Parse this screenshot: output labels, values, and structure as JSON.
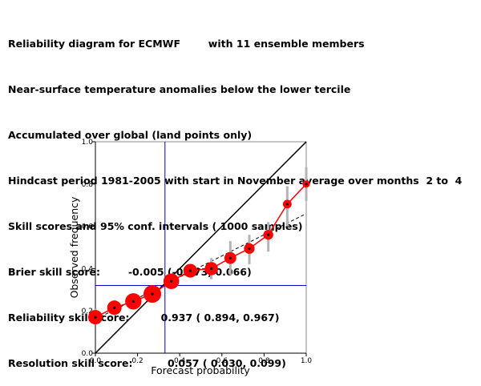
{
  "header": {
    "lines": [
      "Reliability diagram for ECMWF        with 11 ensemble members",
      "Near-surface temperature anomalies below the lower tercile",
      "Accumulated over global (land points only)",
      "Hindcast period 1981-2005 with start in November average over months  2 to  4",
      "Skill scores and 95% conf. intervals ( 1000 samples)",
      "Brier skill score:        -0.005 (-0.073, 0.066)",
      "Reliability skill score:         0.937 ( 0.894, 0.967)",
      "Resolution skill score:          0.057 ( 0.030, 0.099)"
    ]
  },
  "chart_data": {
    "type": "scatter",
    "xlabel": "Forecast probability",
    "ylabel": "Observed frequency",
    "xlim": [
      0,
      1
    ],
    "ylim": [
      0,
      1
    ],
    "x_ticks": [
      "0.0",
      "0.2",
      "0.4",
      "0.6",
      "0.8",
      "1.0"
    ],
    "y_ticks": [
      "0.0",
      "0.2",
      "0.4",
      "0.6",
      "0.8",
      "1.0"
    ],
    "climatology": 0.32,
    "climatology_x": 0.33,
    "fit_line": {
      "x": [
        0.0,
        1.0
      ],
      "y": [
        0.16,
        0.66
      ]
    },
    "points": [
      {
        "x": 0.0,
        "y": 0.17,
        "ci": [
          0.14,
          0.21
        ],
        "size": 0.75
      },
      {
        "x": 0.09,
        "y": 0.215,
        "ci": [
          0.18,
          0.25
        ],
        "size": 0.75
      },
      {
        "x": 0.18,
        "y": 0.245,
        "ci": [
          0.225,
          0.265
        ],
        "size": 0.9
      },
      {
        "x": 0.27,
        "y": 0.28,
        "ci": [
          0.26,
          0.3
        ],
        "size": 1.0
      },
      {
        "x": 0.36,
        "y": 0.34,
        "ci": [
          0.32,
          0.36
        ],
        "size": 0.85
      },
      {
        "x": 0.45,
        "y": 0.39,
        "ci": [
          0.36,
          0.42
        ],
        "size": 0.7
      },
      {
        "x": 0.55,
        "y": 0.4,
        "ci": [
          0.35,
          0.45
        ],
        "size": 0.65
      },
      {
        "x": 0.64,
        "y": 0.45,
        "ci": [
          0.37,
          0.53
        ],
        "size": 0.55
      },
      {
        "x": 0.73,
        "y": 0.495,
        "ci": [
          0.42,
          0.56
        ],
        "size": 0.45
      },
      {
        "x": 0.82,
        "y": 0.56,
        "ci": [
          0.48,
          0.62
        ],
        "size": 0.4
      },
      {
        "x": 0.91,
        "y": 0.705,
        "ci": [
          0.6,
          0.79
        ],
        "size": 0.3
      },
      {
        "x": 1.0,
        "y": 0.8,
        "ci": [
          0.72,
          0.88
        ],
        "size": 0.2
      }
    ],
    "colors": {
      "points": "#ff0000",
      "connector": "#ff0000",
      "center": "#000000",
      "ci": "#b4b4b4",
      "diagonal": "#000000",
      "fit": "#000000",
      "climatology": "#0000cc",
      "axes": "#000000",
      "grid_top": "#b4b4b4"
    }
  }
}
